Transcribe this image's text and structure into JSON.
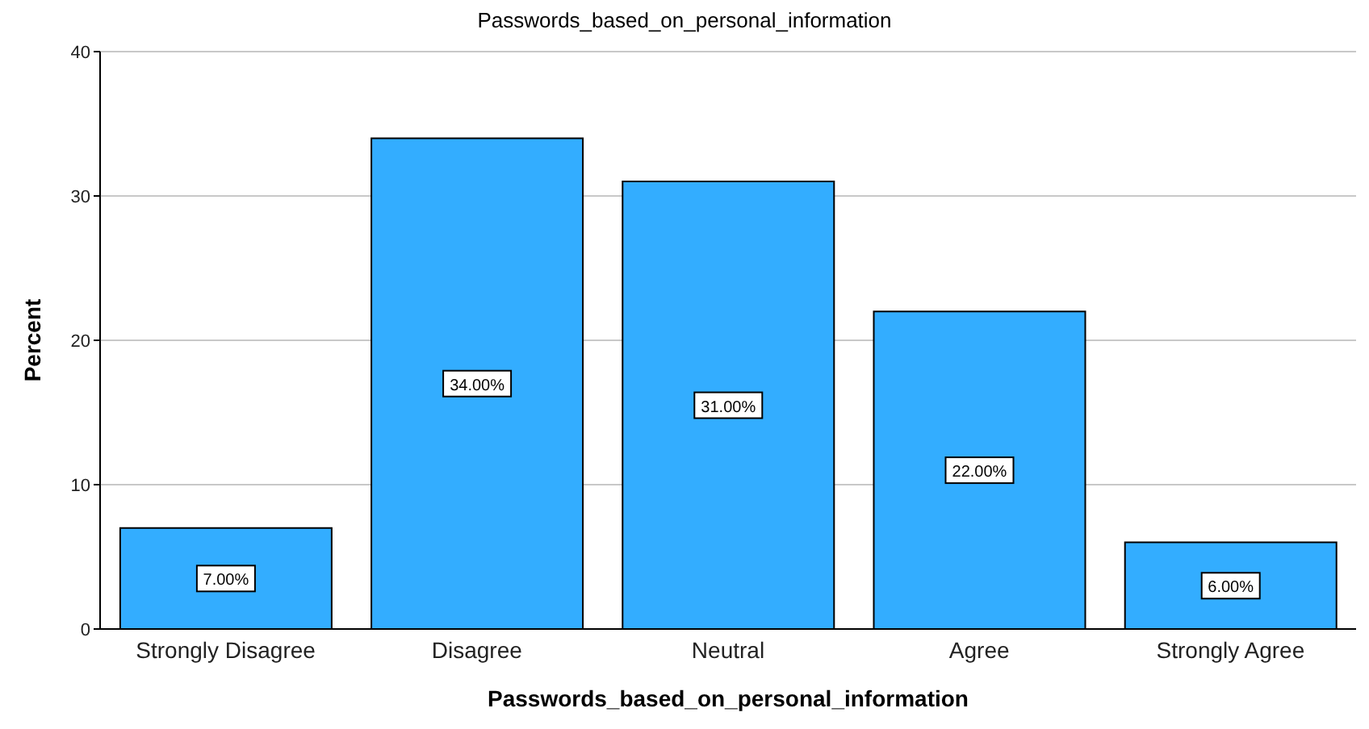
{
  "chart_data": {
    "type": "bar",
    "title": "Passwords_based_on_personal_information",
    "xlabel": "Passwords_based_on_personal_information",
    "ylabel": "Percent",
    "categories": [
      "Strongly Disagree",
      "Disagree",
      "Neutral",
      "Agree",
      "Strongly Agree"
    ],
    "values": [
      7,
      34,
      31,
      22,
      6
    ],
    "color": "#33adff",
    "value_labels": [
      "7.00%",
      "34.00%",
      "31.00%",
      "22.00%",
      "6.00%"
    ],
    "ylim": [
      0,
      40
    ],
    "yticks": [
      0,
      10,
      20,
      30,
      40
    ],
    "grid": "y"
  }
}
